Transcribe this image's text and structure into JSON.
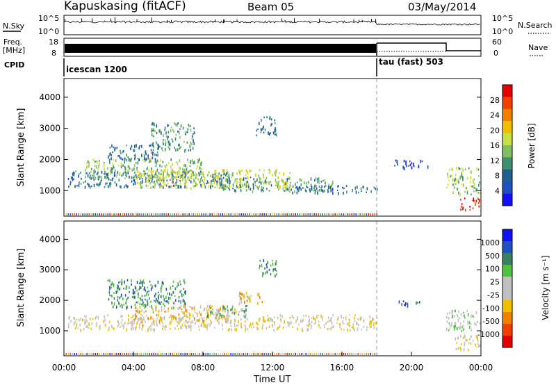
{
  "header": {
    "title": "Kapuskasing (fitACF)",
    "beam": "Beam 05",
    "date": "03/May/2014"
  },
  "noise_panel": {
    "left_label": "N.Sky",
    "right_label": "N.Search",
    "left_ticks": [
      "10^5",
      "10^0"
    ],
    "right_ticks": [
      "10^5",
      "10^0"
    ]
  },
  "freq_panel": {
    "left_label_1": "Freq.",
    "left_label_2": "[MHz]",
    "left_ticks": [
      "18",
      "8"
    ],
    "right_label": "Nave",
    "right_ticks": [
      "60",
      "0"
    ]
  },
  "cpid_panel": {
    "label": "CPID",
    "modes": [
      {
        "name": "icescan 1200",
        "start_hour": 0
      },
      {
        "name": "tau (fast) 503",
        "start_hour": 18
      }
    ]
  },
  "power_panel": {
    "ylabel": "Slant Range [km]",
    "colorbar_label": "Power [dB]",
    "colorbar_ticks": [
      "28",
      "24",
      "20",
      "16",
      "12",
      "8",
      "4"
    ],
    "colorbar_colors": [
      "#e00000",
      "#f04000",
      "#f08000",
      "#f0c000",
      "#c8e040",
      "#80c060",
      "#409070",
      "#206090",
      "#2050c0",
      "#1010f0"
    ]
  },
  "velocity_panel": {
    "ylabel": "Slant Range [km]",
    "colorbar_label": "Velocity [m s⁻¹]",
    "colorbar_ticks": [
      "1000",
      "500",
      "100",
      "25",
      "-25",
      "-100",
      "-500",
      "-1000"
    ],
    "colorbar_colors": [
      "#1010f0",
      "#2050c0",
      "#3a8060",
      "#50c040",
      "#c0c0c0",
      "#c0c0c0",
      "#f0c000",
      "#f08000",
      "#f04000",
      "#e00000"
    ]
  },
  "x_axis": {
    "label": "Time UT",
    "tick_labels": [
      "00:00",
      "04:00",
      "08:00",
      "12:00",
      "16:00",
      "20:00",
      "00:00"
    ]
  },
  "chart_data": {
    "type": "heatmap",
    "title": "Kapuskasing (fitACF)",
    "subtitle": "Beam 05",
    "date": "03/May/2014",
    "xlabel": "Time UT",
    "ylabel": "Slant Range [km]",
    "xlim_hours": [
      0,
      24
    ],
    "ylim_km": [
      180,
      4600
    ],
    "y_ticks": [
      1000,
      2000,
      3000,
      4000
    ],
    "mode_change_hour": 18,
    "power_echo_bands": [
      {
        "t0": 0.2,
        "t1": 9.5,
        "r0": 1150,
        "r1": 1650,
        "level": 2
      },
      {
        "t0": 1.2,
        "t1": 8.0,
        "r0": 1400,
        "r1": 2050,
        "level": 4
      },
      {
        "t0": 4.0,
        "t1": 13.0,
        "r0": 1100,
        "r1": 1700,
        "level": 5
      },
      {
        "t0": 9.0,
        "t1": 15.5,
        "r0": 1000,
        "r1": 1450,
        "level": 3
      },
      {
        "t0": 13.0,
        "t1": 18.0,
        "r0": 950,
        "r1": 1200,
        "level": 2
      },
      {
        "t0": 2.5,
        "t1": 5.5,
        "r0": 2000,
        "r1": 2500,
        "level": 2
      },
      {
        "t0": 5.0,
        "t1": 7.5,
        "r0": 2300,
        "r1": 3200,
        "level": 3
      },
      {
        "t0": 11.0,
        "t1": 12.2,
        "r0": 2800,
        "r1": 3400,
        "level": 2
      },
      {
        "t0": 19.0,
        "t1": 21.0,
        "r0": 1750,
        "r1": 2000,
        "level": 1
      },
      {
        "t0": 22.0,
        "t1": 24.0,
        "r0": 900,
        "r1": 1800,
        "level": 4
      },
      {
        "t0": 22.8,
        "t1": 24.0,
        "r0": 400,
        "r1": 800,
        "level": 9
      }
    ],
    "velocity_echo_bands": [
      {
        "t0": 0.2,
        "t1": 18.0,
        "r0": 1050,
        "r1": 1550,
        "level": 4
      },
      {
        "t0": 2.5,
        "t1": 7.0,
        "r0": 1800,
        "r1": 2700,
        "level": 7
      },
      {
        "t0": 4.0,
        "t1": 10.0,
        "r0": 1300,
        "r1": 1850,
        "level": 3
      },
      {
        "t0": 8.0,
        "t1": 10.5,
        "r0": 1500,
        "r1": 1900,
        "level": 6
      },
      {
        "t0": 10.0,
        "t1": 11.5,
        "r0": 1900,
        "r1": 2300,
        "level": 3
      },
      {
        "t0": 11.2,
        "t1": 12.2,
        "r0": 2800,
        "r1": 3400,
        "level": 7
      },
      {
        "t0": 19.0,
        "t1": 20.5,
        "r0": 1850,
        "r1": 2000,
        "level": 8
      },
      {
        "t0": 22.0,
        "t1": 24.0,
        "r0": 1000,
        "r1": 1700,
        "level": 5
      },
      {
        "t0": 22.5,
        "t1": 24.0,
        "r0": 400,
        "r1": 900,
        "level": 4
      }
    ]
  }
}
